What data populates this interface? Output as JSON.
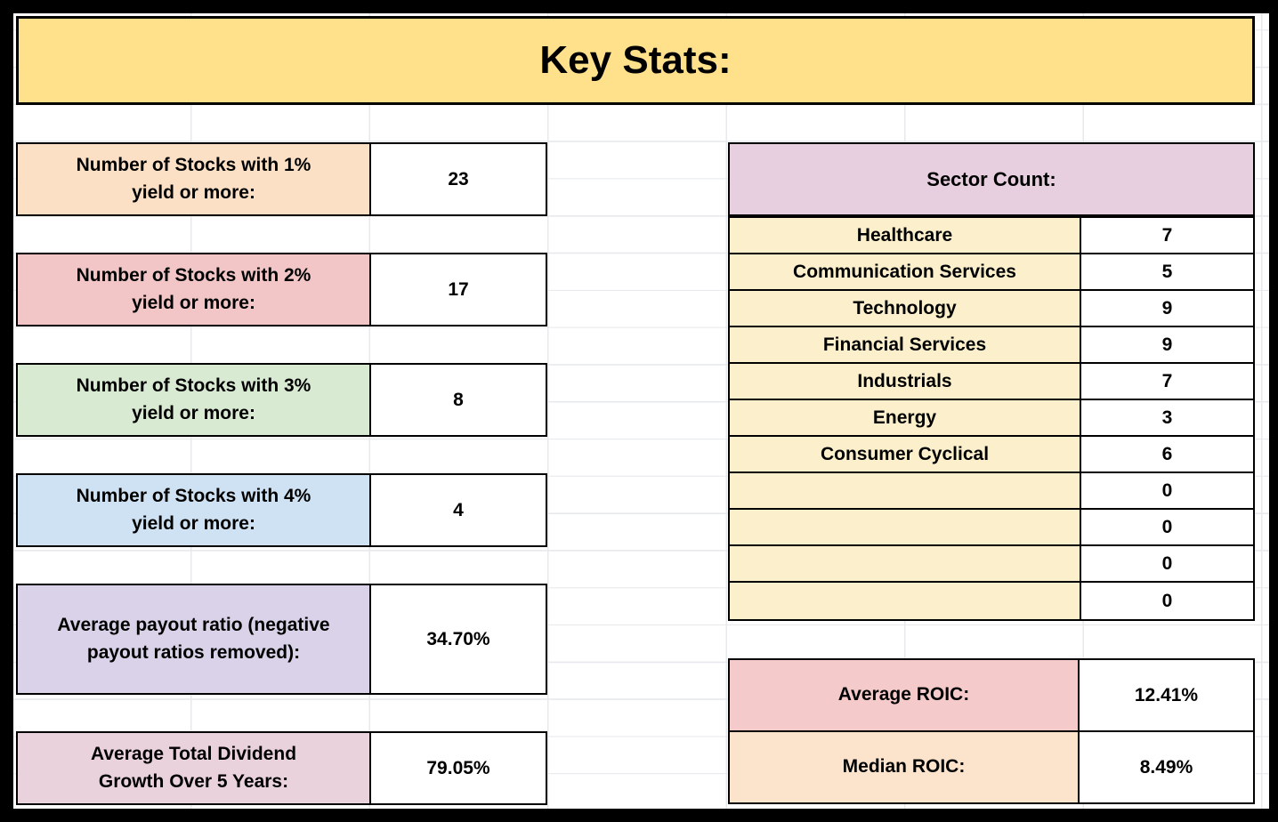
{
  "title": "Key Stats:",
  "colors": {
    "frame": "#000000",
    "gridline": "#E7E9EC",
    "banner_bg": "#FFE18C",
    "sector_header_bg": "#E8CFDF",
    "sector_row_label_bg": "#FCF0CC",
    "cell_border": "#000000",
    "text": "#000000"
  },
  "left_stats": [
    {
      "label": "Number of Stocks with 1%\nyield or more:",
      "value": "23",
      "bg": "#FBE0C5"
    },
    {
      "label": "Number of Stocks with 2%\nyield or more:",
      "value": "17",
      "bg": "#F2C6C6"
    },
    {
      "label": "Number of Stocks with 3%\nyield or more:",
      "value": "8",
      "bg": "#D9EAD3"
    },
    {
      "label": "Number of Stocks with 4%\nyield or more:",
      "value": "4",
      "bg": "#CFE2F3"
    },
    {
      "label": "Average payout ratio (negative\npayout ratios removed):",
      "value": "34.70%",
      "bg": "#D9D2E9"
    },
    {
      "label": "Average Total Dividend\nGrowth Over 5 Years:",
      "value": "79.05%",
      "bg": "#EAD2DD"
    }
  ],
  "sector_table": {
    "header": "Sector Count:",
    "rows": [
      {
        "label": "Healthcare",
        "value": "7"
      },
      {
        "label": "Communication Services",
        "value": "5"
      },
      {
        "label": "Technology",
        "value": "9"
      },
      {
        "label": "Financial Services",
        "value": "9"
      },
      {
        "label": "Industrials",
        "value": "7"
      },
      {
        "label": "Energy",
        "value": "3"
      },
      {
        "label": "Consumer Cyclical",
        "value": "6"
      },
      {
        "label": "",
        "value": "0"
      },
      {
        "label": "",
        "value": "0"
      },
      {
        "label": "",
        "value": "0"
      },
      {
        "label": "",
        "value": "0"
      }
    ]
  },
  "roic_stats": [
    {
      "label": "Average ROIC:",
      "value": "12.41%",
      "bg": "#F5CACA"
    },
    {
      "label": "Median ROIC:",
      "value": "8.49%",
      "bg": "#FBE3CC"
    }
  ]
}
